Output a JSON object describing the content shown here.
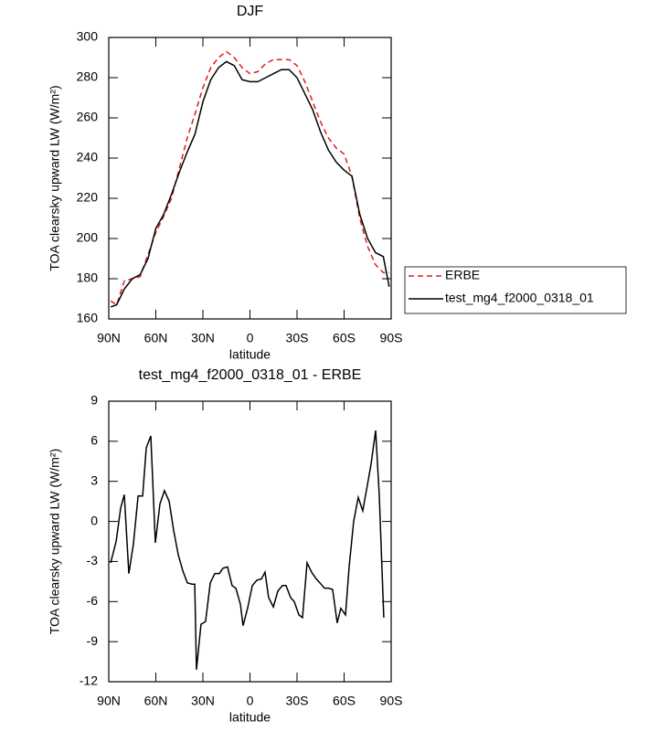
{
  "chart_data": [
    {
      "type": "line",
      "title": "DJF",
      "xlabel": "latitude",
      "ylabel": "TOA clearsky upward LW (W/m²)",
      "x": [
        88.75,
        85,
        80,
        75,
        70,
        65,
        60,
        55,
        50,
        45,
        40,
        35,
        30,
        25,
        20,
        15,
        10,
        5,
        0,
        -5,
        -10,
        -15,
        -20,
        -25,
        -30,
        -35,
        -40,
        -45,
        -50,
        -55,
        -60,
        -65,
        -70,
        -75,
        -80,
        -85,
        -88.75
      ],
      "series": [
        {
          "name": "ERBE",
          "color": "#e41a1c",
          "line_style": "dashed",
          "values": [
            169,
            167,
            179,
            180,
            181,
            192,
            203,
            211,
            220,
            235,
            250,
            262,
            275,
            285,
            290,
            293,
            290,
            285,
            282,
            283,
            287,
            289,
            289,
            289,
            286,
            278,
            268,
            258,
            250,
            245,
            242,
            231,
            210,
            196,
            187,
            183,
            183
          ]
        },
        {
          "name": "test_mg4_f2000_0318_01",
          "color": "#000000",
          "line_style": "solid",
          "values": [
            166,
            167,
            175,
            180,
            182,
            190,
            205,
            212,
            222,
            233,
            243,
            252,
            268,
            279,
            285,
            288,
            286,
            279,
            278,
            278,
            280,
            282,
            284,
            284,
            280,
            272,
            264,
            253,
            244,
            238,
            234,
            231,
            212,
            200,
            193,
            191,
            176
          ]
        }
      ],
      "xlim": [
        90,
        -90
      ],
      "xticks": [
        {
          "value": 90,
          "label": "90N"
        },
        {
          "value": 60,
          "label": "60N"
        },
        {
          "value": 30,
          "label": "30N"
        },
        0,
        {
          "value": -30,
          "label": "30S"
        },
        {
          "value": -60,
          "label": "60S"
        },
        {
          "value": -90,
          "label": "90S"
        }
      ],
      "ylim": [
        160,
        300
      ],
      "yticks": [
        160,
        180,
        200,
        220,
        240,
        260,
        280,
        300
      ],
      "legend": "right"
    },
    {
      "type": "line",
      "title": "test_mg4_f2000_0318_01 - ERBE",
      "xlabel": "latitude",
      "ylabel": "TOA clearsky upward LW (W/m²)",
      "color": "#000000",
      "x": [
        88.8,
        85.3,
        82.4,
        80.1,
        77.2,
        74.3,
        71.3,
        68.4,
        66.1,
        63.2,
        60.3,
        57.4,
        54.5,
        51.5,
        48.6,
        45.7,
        42.8,
        39.9,
        37.0,
        35.2,
        34.1,
        31.2,
        28.3,
        25.3,
        22.4,
        19.5,
        17.2,
        14.3,
        11.4,
        9.0,
        6.1,
        4.4,
        1.5,
        -1.5,
        -4.4,
        -7.3,
        -9.6,
        -11.9,
        -14.9,
        -17.8,
        -20.7,
        -23.0,
        -25.9,
        -28.2,
        -31.2,
        -33.5,
        -36.4,
        -39.3,
        -42.2,
        -44.6,
        -47.5,
        -50.4,
        -52.7,
        -55.6,
        -57.9,
        -60.9,
        -63.2,
        -66.1,
        -69.0,
        -71.9,
        -74.8,
        -77.2,
        -80.1,
        -82.4,
        -85.3
      ],
      "values": [
        -3.1,
        -1.5,
        1,
        2,
        -3.9,
        -1.7,
        1.9,
        1.9,
        5.5,
        6.4,
        -1.6,
        1.3,
        2.3,
        1.5,
        -0.7,
        -2.5,
        -3.7,
        -4.6,
        -4.7,
        -4.7,
        -11.1,
        -7.7,
        -7.5,
        -4.6,
        -3.9,
        -3.9,
        -3.5,
        -3.4,
        -4.8,
        -5,
        -6.2,
        -7.8,
        -6.5,
        -4.8,
        -4.4,
        -4.3,
        -3.8,
        -5.7,
        -6.4,
        -5.2,
        -4.8,
        -4.8,
        -5.7,
        -6,
        -7,
        -7.2,
        -3.1,
        -3.8,
        -4.3,
        -4.6,
        -5,
        -5,
        -5.1,
        -7.6,
        -6.5,
        -7,
        -3.4,
        0,
        1.8,
        0.8,
        2.7,
        4.3,
        6.8,
        2,
        -7.2
      ],
      "xlim": [
        90,
        -90
      ],
      "xticks": [
        {
          "value": 90,
          "label": "90N"
        },
        {
          "value": 60,
          "label": "60N"
        },
        {
          "value": 30,
          "label": "30N"
        },
        0,
        {
          "value": -30,
          "label": "30S"
        },
        {
          "value": -60,
          "label": "60S"
        },
        {
          "value": -90,
          "label": "90S"
        }
      ],
      "ylim": [
        -12,
        9
      ],
      "yticks": [
        -12,
        -9,
        -6,
        -3,
        0,
        3,
        6,
        9
      ]
    }
  ]
}
